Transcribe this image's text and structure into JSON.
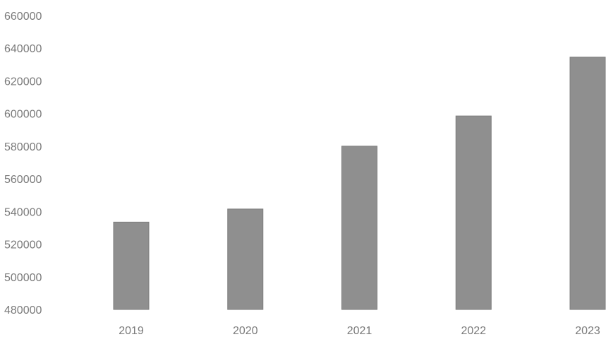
{
  "chart_data": {
    "type": "bar",
    "title": "",
    "xlabel": "",
    "ylabel": "",
    "categories": [
      "2019",
      "2020",
      "2021",
      "2022",
      "2023"
    ],
    "values": [
      533500,
      541500,
      580000,
      598500,
      634500
    ],
    "ylim": [
      480000,
      660000
    ],
    "yticks": [
      480000,
      500000,
      520000,
      540000,
      560000,
      580000,
      600000,
      620000,
      640000,
      660000
    ],
    "ytick_labels": [
      "480000",
      "500000",
      "520000",
      "540000",
      "560000",
      "580000",
      "600000",
      "620000",
      "640000",
      "660000"
    ],
    "grid": false,
    "legend": "none",
    "colors": {
      "bar": "#8f8f8f",
      "tick_text": "#7a7a7a"
    }
  }
}
